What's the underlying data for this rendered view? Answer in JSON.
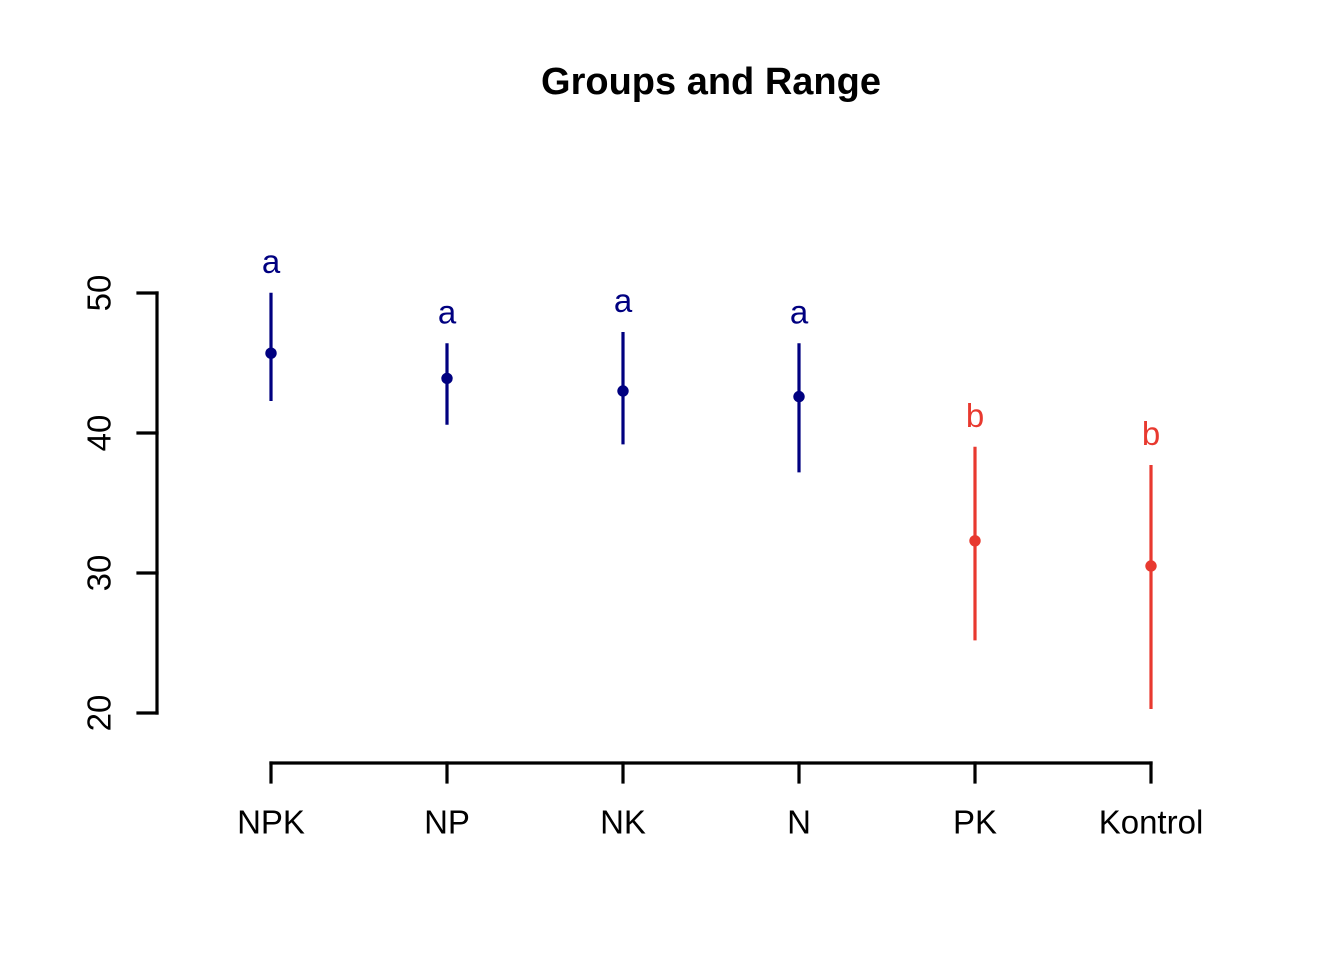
{
  "colors": {
    "navy": "#000080",
    "red": "#E8392F",
    "axis": "#000000",
    "background": "#FFFFFF"
  },
  "chart_data": {
    "type": "scatter",
    "title": "Groups and Range",
    "xlabel": "",
    "ylabel": "",
    "ylim": [
      20,
      50
    ],
    "yticks": [
      20,
      30,
      40,
      50
    ],
    "grid": false,
    "legend": "none",
    "categories": [
      "NPK",
      "NP",
      "NK",
      "N",
      "PK",
      "Kontrol"
    ],
    "groups": [
      {
        "category": "NPK",
        "mean": 45.7,
        "low": 42.4,
        "high": 49.9,
        "letter": "a",
        "color": "#000080"
      },
      {
        "category": "NP",
        "mean": 43.9,
        "low": 40.7,
        "high": 46.3,
        "letter": "a",
        "color": "#000080"
      },
      {
        "category": "NK",
        "mean": 43.0,
        "low": 39.3,
        "high": 47.1,
        "letter": "a",
        "color": "#000080"
      },
      {
        "category": "N",
        "mean": 42.6,
        "low": 37.3,
        "high": 46.3,
        "letter": "a",
        "color": "#000080"
      },
      {
        "category": "PK",
        "mean": 32.3,
        "low": 25.3,
        "high": 38.9,
        "letter": "b",
        "color": "#E8392F"
      },
      {
        "category": "Kontrol",
        "mean": 30.5,
        "low": 20.4,
        "high": 37.6,
        "letter": "b",
        "color": "#E8392F"
      }
    ]
  }
}
